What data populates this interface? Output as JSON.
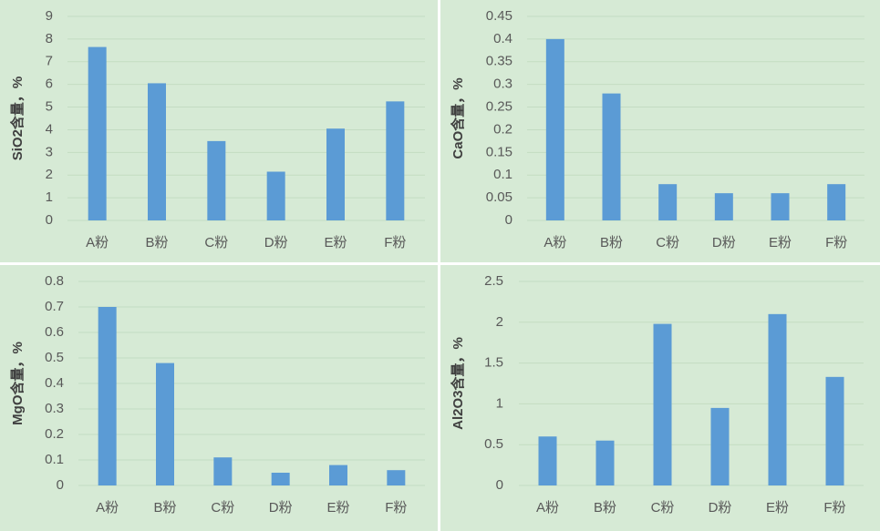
{
  "chart_data": [
    {
      "type": "bar",
      "y_label": "SiO2含量，%",
      "categories": [
        "A粉",
        "B粉",
        "C粉",
        "D粉",
        "E粉",
        "F粉"
      ],
      "values": [
        7.65,
        6.05,
        3.5,
        2.15,
        4.05,
        5.25
      ],
      "color": "#5b9bd5",
      "ylim": [
        0,
        9
      ],
      "yticks": [
        0,
        1,
        2,
        3,
        4,
        5,
        6,
        7,
        8,
        9
      ],
      "grid": true
    },
    {
      "type": "bar",
      "y_label": "CaO含量，%",
      "categories": [
        "A粉",
        "B粉",
        "C粉",
        "D粉",
        "E粉",
        "F粉"
      ],
      "values": [
        0.4,
        0.28,
        0.08,
        0.06,
        0.06,
        0.08
      ],
      "color": "#5b9bd5",
      "ylim": [
        0,
        0.45
      ],
      "yticks": [
        0,
        0.05,
        0.1,
        0.15,
        0.2,
        0.25,
        0.3,
        0.35,
        0.4,
        0.45
      ],
      "grid": true
    },
    {
      "type": "bar",
      "y_label": "MgO含量，%",
      "categories": [
        "A粉",
        "B粉",
        "C粉",
        "D粉",
        "E粉",
        "F粉"
      ],
      "values": [
        0.7,
        0.48,
        0.11,
        0.05,
        0.08,
        0.06
      ],
      "color": "#5b9bd5",
      "ylim": [
        0,
        0.8
      ],
      "yticks": [
        0,
        0.1,
        0.2,
        0.3,
        0.4,
        0.5,
        0.6,
        0.7,
        0.8
      ],
      "grid": true
    },
    {
      "type": "bar",
      "y_label": "Al2O3含量，%",
      "categories": [
        "A粉",
        "B粉",
        "C粉",
        "D粉",
        "E粉",
        "F粉"
      ],
      "values": [
        0.6,
        0.55,
        1.98,
        0.95,
        2.1,
        1.33
      ],
      "color": "#5b9bd5",
      "ylim": [
        0,
        2.5
      ],
      "yticks": [
        0,
        0.5,
        1,
        1.5,
        2,
        2.5
      ],
      "grid": true
    }
  ]
}
